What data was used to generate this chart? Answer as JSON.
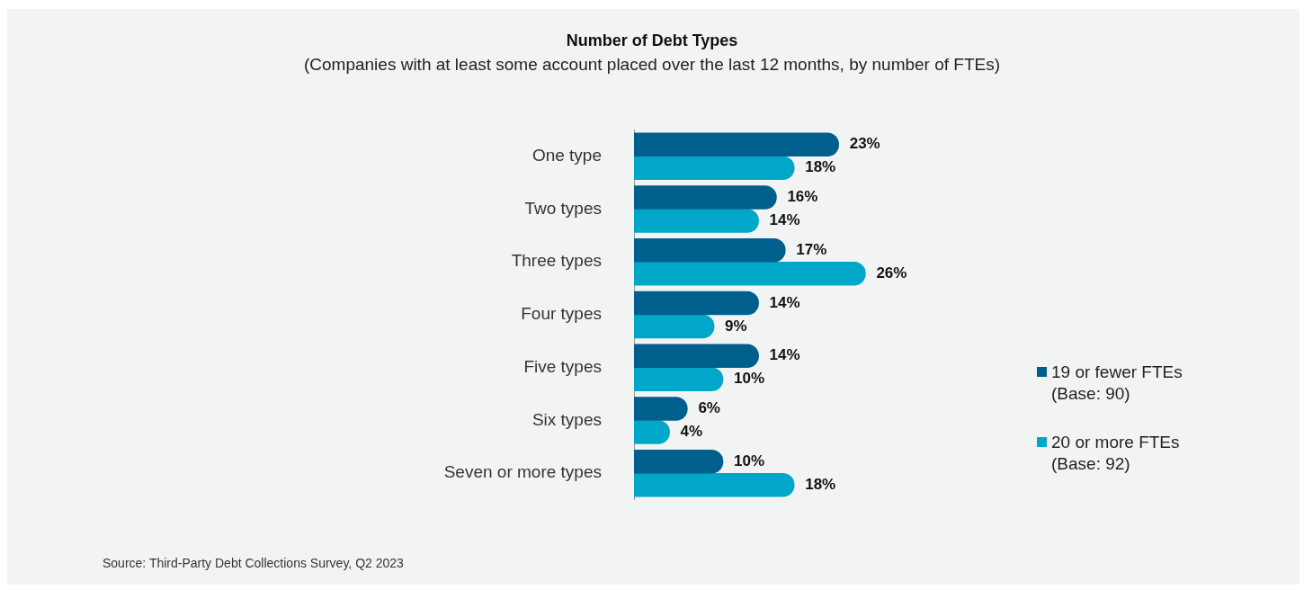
{
  "chart_data": {
    "type": "bar",
    "orientation": "horizontal",
    "title": "Number of Debt Types",
    "subtitle": "(Companies with at least some account placed over the last 12 months, by number of FTEs)",
    "categories": [
      "One type",
      "Two types",
      "Three types",
      "Four types",
      "Five types",
      "Six types",
      "Seven or more types"
    ],
    "series": [
      {
        "name": "19 or fewer FTEs\n(Base: 90)",
        "color": "#005f8c",
        "values": [
          23,
          16,
          17,
          14,
          14,
          6,
          10
        ],
        "value_labels": [
          "23%",
          "16%",
          "17%",
          "14%",
          "14%",
          "6%",
          "10%"
        ]
      },
      {
        "name": "20 or more FTEs\n(Base: 92)",
        "color": "#00a7c8",
        "values": [
          18,
          14,
          26,
          9,
          10,
          4,
          18
        ],
        "value_labels": [
          "18%",
          "14%",
          "26%",
          "9%",
          "10%",
          "4%",
          "18%"
        ]
      }
    ],
    "legend": "right",
    "annotations": [
      "Source: Third-Party Debt Collections Survey, Q2 2023"
    ]
  }
}
